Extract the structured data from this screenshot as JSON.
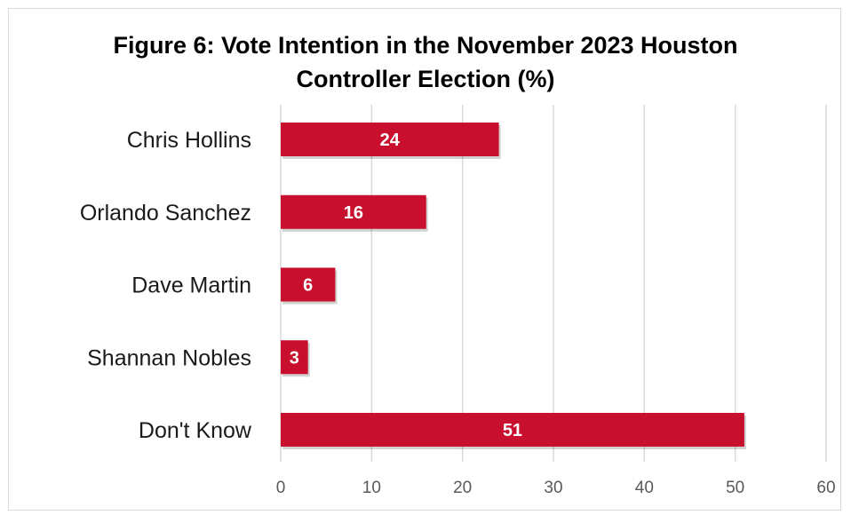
{
  "chart_data": {
    "type": "bar",
    "orientation": "horizontal",
    "title_lines": [
      "Figure 6: Vote Intention in the November 2023 Houston",
      "Controller Election (%)"
    ],
    "categories": [
      "Chris Hollins",
      "Orlando Sanchez",
      "Dave Martin",
      "Shannan Nobles",
      "Don't Know"
    ],
    "values": [
      24,
      16,
      6,
      3,
      51
    ],
    "data_labels": [
      "24",
      "16",
      "6",
      "3",
      "51"
    ],
    "xlim": [
      0,
      60
    ],
    "x_ticks": [
      0,
      10,
      20,
      30,
      40,
      50,
      60
    ],
    "x_tick_labels": [
      "0",
      "10",
      "20",
      "30",
      "40",
      "50",
      "60"
    ],
    "grid": "vertical",
    "legend": "none",
    "colors": {
      "bar": "#c8102e",
      "grid": "#d9d9d9",
      "tick_text": "#595959",
      "label_text": "#1a1a1a",
      "data_label_text": "#ffffff"
    }
  }
}
